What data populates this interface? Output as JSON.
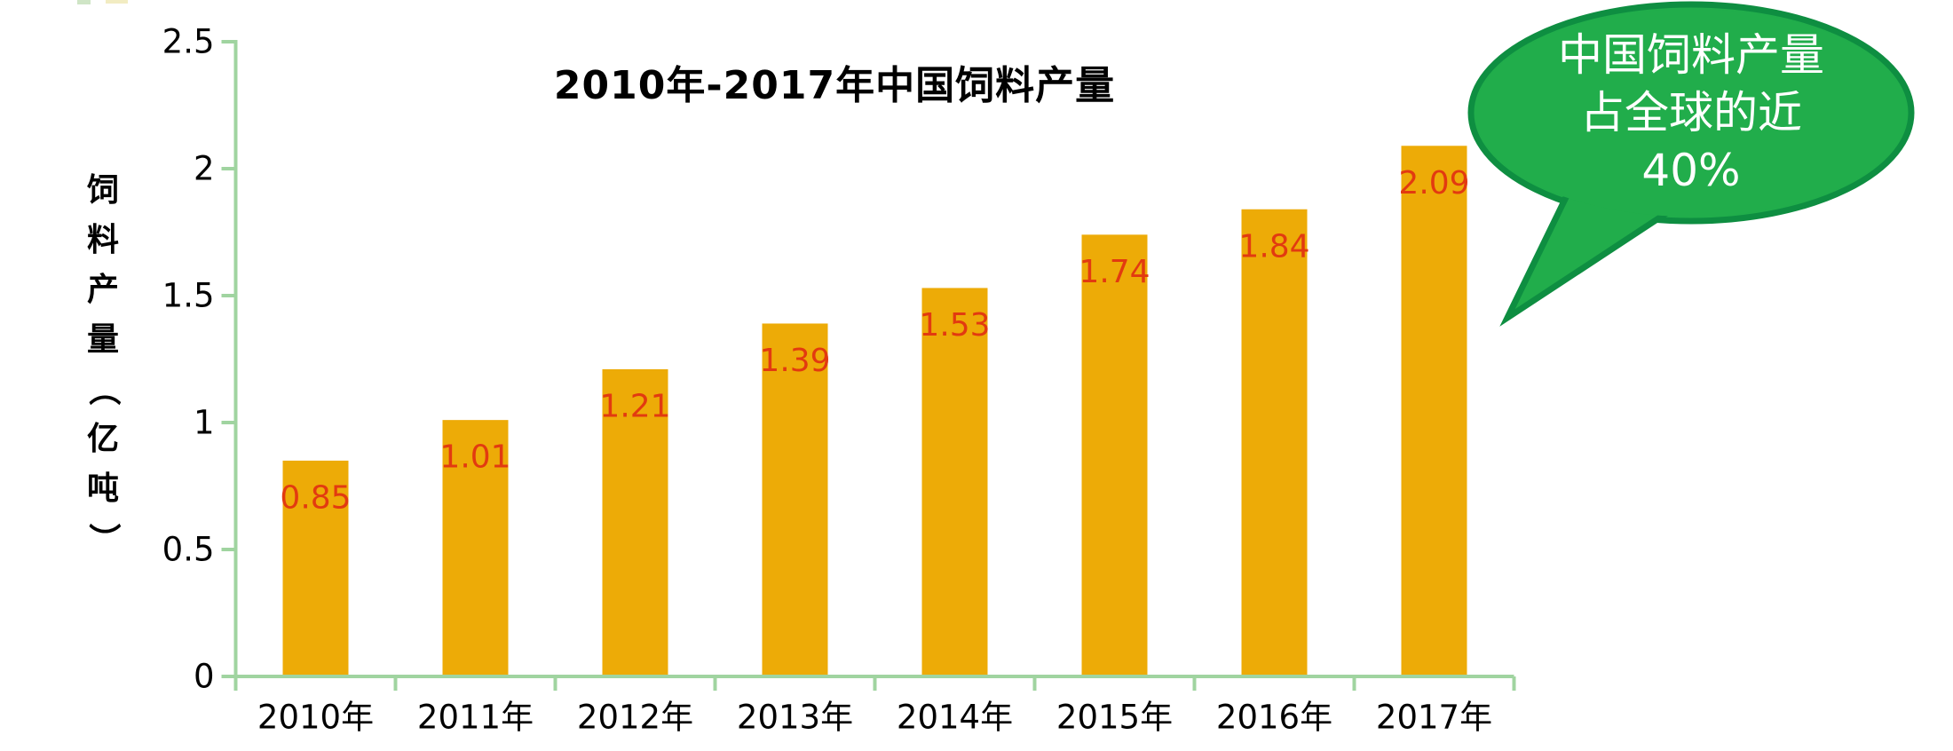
{
  "chart_data": {
    "type": "bar",
    "title": "2010年-2017年中国饲料产量",
    "ylabel": "饲料产量（亿吨）",
    "xlabel": "",
    "categories": [
      "2010年",
      "2011年",
      "2012年",
      "2013年",
      "2014年",
      "2015年",
      "2016年",
      "2017年"
    ],
    "values": [
      0.85,
      1.01,
      1.21,
      1.39,
      1.53,
      1.74,
      1.84,
      2.09
    ],
    "value_labels": [
      "0.85",
      "1.01",
      "1.21",
      "1.39",
      "1.53",
      "1.74",
      "1.84",
      "2.09"
    ],
    "ylim": [
      0,
      2.5
    ],
    "yticks": [
      0,
      0.5,
      1,
      1.5,
      2,
      2.5
    ],
    "ytick_labels": [
      "0",
      "0.5",
      "1",
      "1.5",
      "2",
      "2.5"
    ],
    "grid": false,
    "legend": false
  },
  "callout": {
    "lines": [
      "中国饲料产量",
      "占全球的近",
      "40%"
    ]
  },
  "colors": {
    "bar": "#EDAB07",
    "value_label": "#E23A10",
    "axis": "#A0D4A0",
    "tick_text": "#000000",
    "callout_fill": "#21AD4B",
    "callout_stroke": "#0E8E41",
    "callout_text": "#FFFFFF"
  }
}
